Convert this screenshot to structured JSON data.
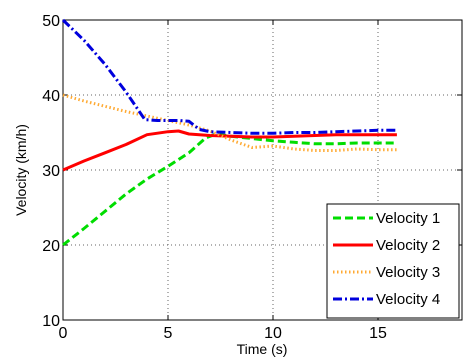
{
  "chart_data": {
    "type": "line",
    "xlabel": "Time (s)",
    "ylabel": "Velocity (km/h)",
    "xlim": [
      0,
      19
    ],
    "ylim": [
      10,
      50
    ],
    "x_ticks": [
      "0",
      "5",
      "10",
      "15"
    ],
    "y_ticks": [
      "10",
      "20",
      "30",
      "40",
      "50"
    ],
    "grid": true,
    "legend_position": "bottom-right",
    "series": [
      {
        "name": "Velocity 1",
        "color": "#00dd00",
        "style": "dashed",
        "x": [
          0,
          1,
          2,
          3,
          4,
          5,
          6,
          6.8,
          7.3,
          8,
          9,
          10,
          11,
          12,
          13,
          14,
          15,
          15.9
        ],
        "y": [
          20,
          22.2,
          24.5,
          26.8,
          28.8,
          30.5,
          32.3,
          34.3,
          34.8,
          34.5,
          34.2,
          33.9,
          33.7,
          33.5,
          33.5,
          33.6,
          33.6,
          33.6
        ]
      },
      {
        "name": "Velocity 2",
        "color": "#ff0000",
        "style": "solid",
        "x": [
          0,
          1,
          2,
          3,
          4,
          5,
          5.5,
          6,
          7,
          8,
          9,
          10,
          11,
          12,
          13,
          14,
          15,
          15.9
        ],
        "y": [
          30,
          31.2,
          32.3,
          33.4,
          34.7,
          35.1,
          35.2,
          34.8,
          34.6,
          34.5,
          34.4,
          34.4,
          34.5,
          34.6,
          34.7,
          34.7,
          34.7,
          34.7
        ]
      },
      {
        "name": "Velocity 3",
        "color": "#ffaa33",
        "style": "dotted",
        "x": [
          0,
          1,
          2,
          3,
          4,
          5,
          6,
          7,
          8,
          9,
          10,
          11,
          12,
          13,
          14,
          15,
          15.9
        ],
        "y": [
          40,
          39.2,
          38.5,
          37.8,
          37.2,
          36.6,
          36.0,
          35.2,
          34.0,
          33.0,
          33.2,
          32.8,
          32.6,
          32.6,
          32.8,
          32.7,
          32.7
        ]
      },
      {
        "name": "Velocity 4",
        "color": "#0000dd",
        "style": "dashdot",
        "x": [
          0,
          1,
          2,
          3,
          3.9,
          4.5,
          5,
          5.5,
          6,
          6.5,
          7,
          8,
          9,
          10,
          11,
          12,
          13,
          14,
          15,
          15.9
        ],
        "y": [
          50,
          47.3,
          44.1,
          40.4,
          36.7,
          36.6,
          36.6,
          36.6,
          36.5,
          35.4,
          35.1,
          35.0,
          34.9,
          34.9,
          35.0,
          35.0,
          35.1,
          35.2,
          35.3,
          35.3
        ]
      }
    ]
  }
}
